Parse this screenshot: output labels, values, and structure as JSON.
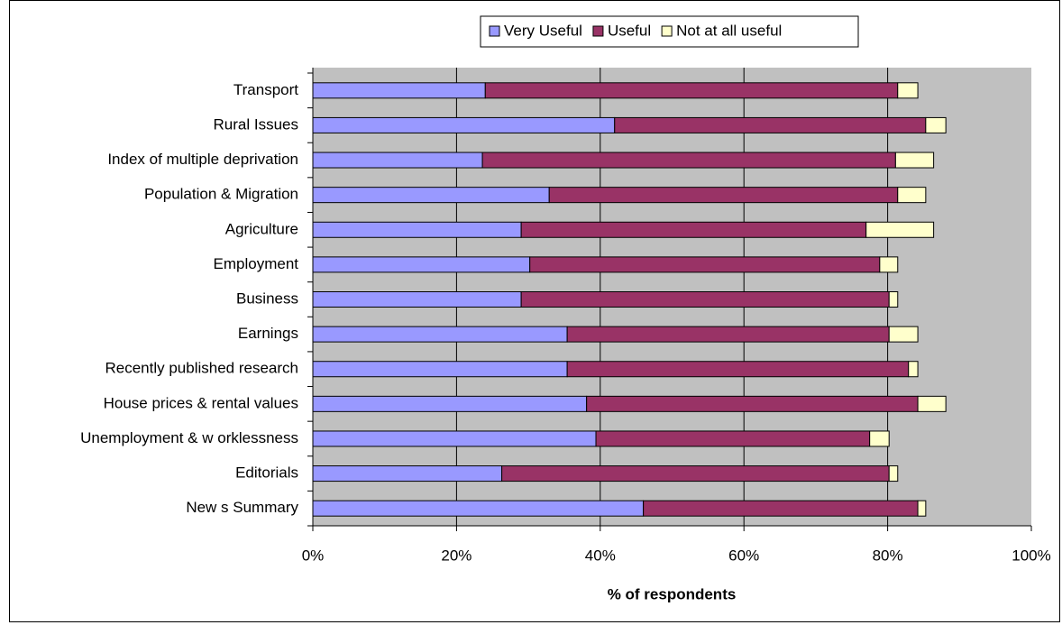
{
  "chart_data": {
    "type": "stacked-barh",
    "x_label": "% of respondents",
    "categories": [
      "Transport",
      "Rural Issues",
      "Index of multiple deprivation",
      "Population & Migration",
      "Agriculture",
      "Employment",
      "Business",
      "Earnings",
      "Recently published research",
      "House prices & rental values",
      "Unemployment & w orklessness",
      "Editorials",
      "New s Summary"
    ],
    "series": [
      {
        "name": "Very Useful",
        "color": "#9999ff",
        "values": [
          24.0,
          42.0,
          23.6,
          32.9,
          29.0,
          30.2,
          29.0,
          35.4,
          35.4,
          38.1,
          39.4,
          26.3,
          46.0
        ]
      },
      {
        "name": "Useful",
        "color": "#993366",
        "values": [
          57.4,
          43.3,
          57.5,
          48.5,
          48.0,
          48.7,
          51.2,
          44.8,
          47.5,
          46.1,
          38.1,
          53.9,
          38.2
        ]
      },
      {
        "name": "Not at all useful",
        "color": "#ffffcc",
        "values": [
          2.8,
          2.8,
          5.3,
          3.9,
          9.4,
          2.5,
          1.2,
          4.0,
          1.3,
          3.9,
          2.7,
          1.2,
          1.1
        ]
      }
    ],
    "xlim": [
      0,
      100
    ],
    "xticks": [
      {
        "value": 0,
        "label": "0%"
      },
      {
        "value": 20,
        "label": "20%"
      },
      {
        "value": 40,
        "label": "40%"
      },
      {
        "value": 60,
        "label": "60%"
      },
      {
        "value": 80,
        "label": "80%"
      },
      {
        "value": 100,
        "label": "100%"
      }
    ],
    "grid": true,
    "legend": "top",
    "plot_background": "#c0c0c0"
  }
}
